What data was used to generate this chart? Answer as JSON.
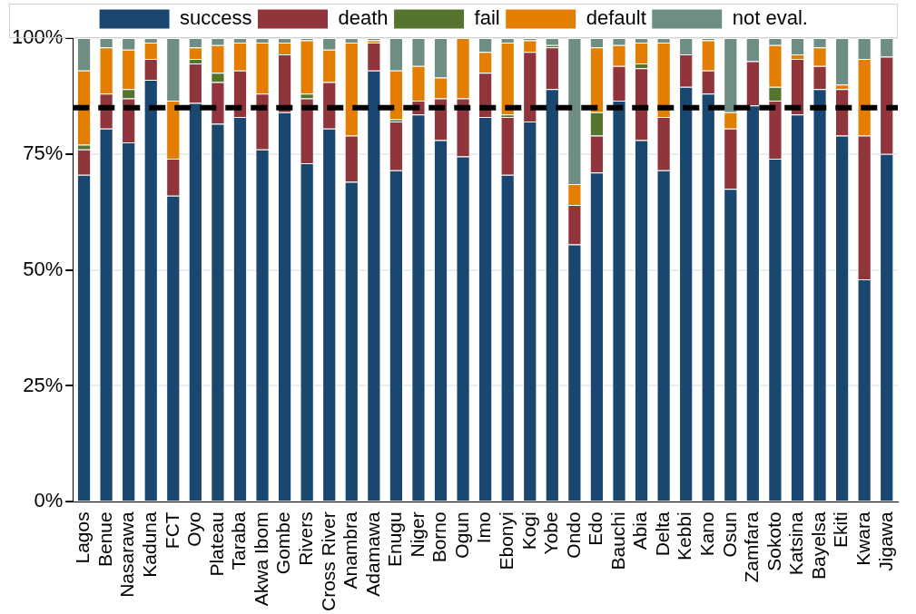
{
  "chart_data": {
    "type": "bar",
    "stacked": true,
    "categories": [
      "Lagos",
      "Benue",
      "Nasarawa",
      "Kaduna",
      "FCT",
      "Oyo",
      "Plateau",
      "Taraba",
      "Akwa Ibom",
      "Gombe",
      "Rivers",
      "Cross River",
      "Anambra",
      "Adamawa",
      "Enugu",
      "Niger",
      "Borno",
      "Ogun",
      "Imo",
      "Ebonyi",
      "Kogi",
      "Yobe",
      "Ondo",
      "Edo",
      "Bauchi",
      "Abia",
      "Delta",
      "Kebbi",
      "Kano",
      "Osun",
      "Zamfara",
      "Sokoto",
      "Katsina",
      "Bayelsa",
      "Ekiti",
      "Kwara",
      "Jigawa"
    ],
    "series": [
      {
        "name": "success",
        "color": "#1a476f",
        "values": [
          70.5,
          80.5,
          77.5,
          91,
          66,
          86,
          81.5,
          83,
          76,
          84,
          73,
          80.5,
          69,
          93,
          71.5,
          83.5,
          78,
          74.5,
          83,
          70.5,
          82,
          89,
          55.5,
          71,
          86.5,
          78,
          71.5,
          89.5,
          88,
          67.5,
          85.5,
          74,
          83.5,
          89,
          79,
          48,
          75
        ]
      },
      {
        "name": "death",
        "color": "#90353b",
        "values": [
          5.5,
          7.5,
          9.5,
          4.5,
          8,
          8.5,
          9,
          10,
          12,
          12.5,
          14,
          10,
          10,
          6,
          10.5,
          3,
          9,
          12.5,
          9.5,
          12.5,
          15,
          9,
          8.5,
          8,
          7.5,
          15.5,
          11.5,
          7,
          5,
          13,
          9.5,
          12.5,
          12,
          5,
          10,
          31,
          21
        ]
      },
      {
        "name": "fail",
        "color": "#55752f",
        "values": [
          1,
          0,
          2,
          0,
          0,
          1,
          2,
          0,
          0,
          0,
          1,
          0,
          0,
          0,
          0.5,
          0,
          0,
          0,
          0,
          0.5,
          0,
          0.5,
          0,
          5,
          0,
          1,
          0,
          0,
          0,
          0,
          0,
          3,
          0,
          0,
          0,
          0,
          0
        ]
      },
      {
        "name": "default",
        "color": "#e37e00",
        "values": [
          16,
          10,
          8.5,
          3.5,
          12.5,
          2.5,
          6,
          6,
          11,
          2.5,
          11.5,
          7,
          20,
          0.5,
          10.5,
          7.5,
          4.5,
          13,
          4.5,
          15.5,
          2.5,
          0,
          4.5,
          14,
          4.5,
          4.5,
          16,
          0,
          6.5,
          3.5,
          0,
          9,
          1,
          4,
          1,
          16.5,
          0
        ]
      },
      {
        "name": "not eval.",
        "color": "#6e8e84",
        "values": [
          7,
          2,
          2.5,
          1,
          13.5,
          2,
          1.5,
          1,
          1,
          1,
          0.5,
          2.5,
          1,
          0.5,
          7,
          6,
          8.5,
          0,
          3,
          1,
          0.5,
          1.5,
          31.5,
          2,
          1.5,
          1,
          1,
          3.5,
          0.5,
          16,
          5,
          1.5,
          3.5,
          2,
          10,
          4.5,
          4
        ]
      }
    ],
    "ylim": [
      0,
      100
    ],
    "yticks": [
      {
        "value": 0,
        "label": "0%"
      },
      {
        "value": 25,
        "label": "25%"
      },
      {
        "value": 50,
        "label": "50%"
      },
      {
        "value": 75,
        "label": "75%"
      },
      {
        "value": 100,
        "label": "100%"
      }
    ],
    "grid": "y",
    "legend": "top",
    "ref_lines": [
      {
        "axis": "y",
        "value": 85,
        "color": "#000000",
        "line_style": "dashed"
      }
    ]
  }
}
